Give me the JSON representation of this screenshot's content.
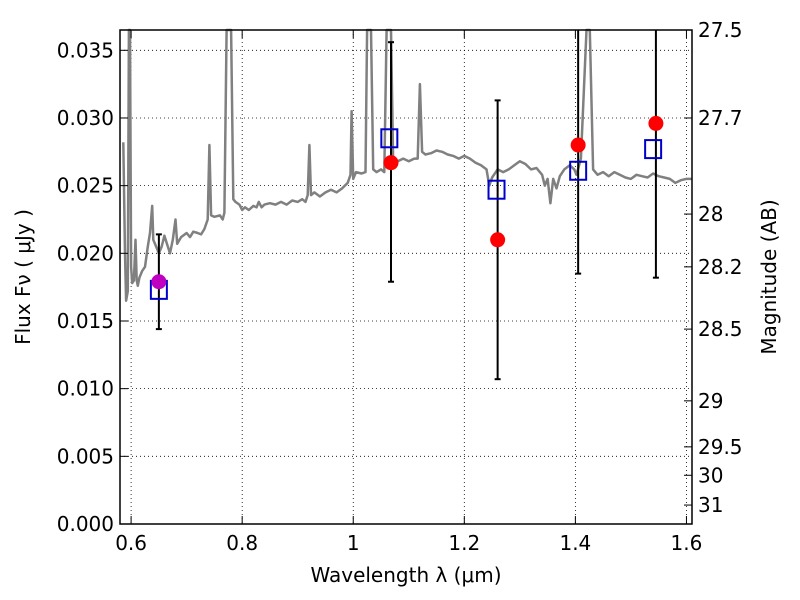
{
  "chart_data": {
    "type": "line",
    "title": "",
    "xlabel": "Wavelength  λ (μm)",
    "ylabel_left": "Flux  Fν  ( μJy )",
    "ylabel_right": "Magnitude (AB)",
    "xlim": [
      0.58,
      1.61
    ],
    "ylim": [
      0.0,
      0.0365
    ],
    "grid": true,
    "grid_style": "dotted",
    "x_ticks": [
      0.6,
      0.8,
      1.0,
      1.2,
      1.4,
      1.6
    ],
    "x_tick_labels": [
      "0.6",
      "0.8",
      "1",
      "1.2",
      "1.4",
      "1.6"
    ],
    "y_ticks": [
      0.0,
      0.005,
      0.01,
      0.015,
      0.02,
      0.025,
      0.03,
      0.035
    ],
    "y_tick_labels": [
      "0.000",
      "0.005",
      "0.010",
      "0.015",
      "0.020",
      "0.025",
      "0.030",
      "0.035"
    ],
    "right_ticks": [
      {
        "label": "27.5",
        "flux": 0.0365
      },
      {
        "label": "27.7",
        "flux": 0.03
      },
      {
        "label": "28",
        "flux": 0.0229
      },
      {
        "label": "28.2",
        "flux": 0.019
      },
      {
        "label": "28.5",
        "flux": 0.0144
      },
      {
        "label": "29",
        "flux": 0.0091
      },
      {
        "label": "29.5",
        "flux": 0.0057
      },
      {
        "label": "30",
        "flux": 0.0036
      },
      {
        "label": "31",
        "flux": 0.0014
      }
    ],
    "series": [
      {
        "type": "line",
        "color": "#808080",
        "points": [
          [
            0.586,
            0.0282
          ],
          [
            0.589,
            0.02
          ],
          [
            0.591,
            0.0165
          ],
          [
            0.594,
            0.0172
          ],
          [
            0.596,
            0.0365
          ],
          [
            0.598,
            0.0365
          ],
          [
            0.6,
            0.019
          ],
          [
            0.602,
            0.0178
          ],
          [
            0.605,
            0.018
          ],
          [
            0.608,
            0.021
          ],
          [
            0.61,
            0.018
          ],
          [
            0.612,
            0.0176
          ],
          [
            0.615,
            0.0182
          ],
          [
            0.62,
            0.0187
          ],
          [
            0.625,
            0.019
          ],
          [
            0.63,
            0.0205
          ],
          [
            0.634,
            0.0215
          ],
          [
            0.638,
            0.0235
          ],
          [
            0.64,
            0.021
          ],
          [
            0.645,
            0.0205
          ],
          [
            0.65,
            0.02
          ],
          [
            0.655,
            0.0205
          ],
          [
            0.66,
            0.0213
          ],
          [
            0.666,
            0.0205
          ],
          [
            0.67,
            0.02
          ],
          [
            0.675,
            0.021
          ],
          [
            0.68,
            0.0225
          ],
          [
            0.683,
            0.0207
          ],
          [
            0.69,
            0.0212
          ],
          [
            0.7,
            0.0215
          ],
          [
            0.706,
            0.0212
          ],
          [
            0.712,
            0.0216
          ],
          [
            0.72,
            0.0215
          ],
          [
            0.726,
            0.0214
          ],
          [
            0.732,
            0.0218
          ],
          [
            0.738,
            0.0225
          ],
          [
            0.741,
            0.028
          ],
          [
            0.744,
            0.0228
          ],
          [
            0.75,
            0.0227
          ],
          [
            0.76,
            0.0228
          ],
          [
            0.765,
            0.0225
          ],
          [
            0.768,
            0.023
          ],
          [
            0.772,
            0.0365
          ],
          [
            0.78,
            0.0365
          ],
          [
            0.784,
            0.024
          ],
          [
            0.788,
            0.0238
          ],
          [
            0.795,
            0.0236
          ],
          [
            0.8,
            0.0232
          ],
          [
            0.805,
            0.0234
          ],
          [
            0.812,
            0.0232
          ],
          [
            0.82,
            0.0235
          ],
          [
            0.826,
            0.0234
          ],
          [
            0.83,
            0.0238
          ],
          [
            0.835,
            0.0234
          ],
          [
            0.84,
            0.0236
          ],
          [
            0.85,
            0.0237
          ],
          [
            0.86,
            0.0236
          ],
          [
            0.87,
            0.0238
          ],
          [
            0.88,
            0.0236
          ],
          [
            0.89,
            0.0239
          ],
          [
            0.9,
            0.0238
          ],
          [
            0.908,
            0.024
          ],
          [
            0.914,
            0.0238
          ],
          [
            0.918,
            0.0243
          ],
          [
            0.921,
            0.028
          ],
          [
            0.924,
            0.0243
          ],
          [
            0.93,
            0.0245
          ],
          [
            0.94,
            0.0242
          ],
          [
            0.95,
            0.0245
          ],
          [
            0.96,
            0.0247
          ],
          [
            0.97,
            0.0245
          ],
          [
            0.98,
            0.0248
          ],
          [
            0.99,
            0.0252
          ],
          [
            0.995,
            0.0258
          ],
          [
            0.997,
            0.0305
          ],
          [
            1.0,
            0.0255
          ],
          [
            1.005,
            0.026
          ],
          [
            1.015,
            0.0259
          ],
          [
            1.022,
            0.026
          ],
          [
            1.025,
            0.0365
          ],
          [
            1.032,
            0.0365
          ],
          [
            1.036,
            0.0262
          ],
          [
            1.042,
            0.026
          ],
          [
            1.05,
            0.0262
          ],
          [
            1.056,
            0.026
          ],
          [
            1.06,
            0.0365
          ],
          [
            1.068,
            0.0365
          ],
          [
            1.072,
            0.0265
          ],
          [
            1.08,
            0.0268
          ],
          [
            1.09,
            0.027
          ],
          [
            1.1,
            0.0268
          ],
          [
            1.11,
            0.027
          ],
          [
            1.116,
            0.027
          ],
          [
            1.12,
            0.0325
          ],
          [
            1.124,
            0.0275
          ],
          [
            1.13,
            0.0273
          ],
          [
            1.14,
            0.0274
          ],
          [
            1.15,
            0.0276
          ],
          [
            1.16,
            0.0275
          ],
          [
            1.17,
            0.0273
          ],
          [
            1.18,
            0.0272
          ],
          [
            1.19,
            0.027
          ],
          [
            1.2,
            0.0272
          ],
          [
            1.21,
            0.027
          ],
          [
            1.22,
            0.0267
          ],
          [
            1.23,
            0.0265
          ],
          [
            1.24,
            0.0262
          ],
          [
            1.245,
            0.025
          ],
          [
            1.25,
            0.0256
          ],
          [
            1.26,
            0.0262
          ],
          [
            1.27,
            0.026
          ],
          [
            1.28,
            0.0262
          ],
          [
            1.29,
            0.0265
          ],
          [
            1.3,
            0.0268
          ],
          [
            1.31,
            0.0266
          ],
          [
            1.32,
            0.0262
          ],
          [
            1.33,
            0.0263
          ],
          [
            1.34,
            0.0258
          ],
          [
            1.345,
            0.025
          ],
          [
            1.35,
            0.0255
          ],
          [
            1.355,
            0.0237
          ],
          [
            1.36,
            0.0255
          ],
          [
            1.366,
            0.0248
          ],
          [
            1.372,
            0.0257
          ],
          [
            1.38,
            0.0262
          ],
          [
            1.39,
            0.0265
          ],
          [
            1.398,
            0.0262
          ],
          [
            1.402,
            0.0258
          ],
          [
            1.41,
            0.027
          ],
          [
            1.42,
            0.0365
          ],
          [
            1.426,
            0.0365
          ],
          [
            1.432,
            0.0262
          ],
          [
            1.44,
            0.0258
          ],
          [
            1.45,
            0.026
          ],
          [
            1.46,
            0.0257
          ],
          [
            1.47,
            0.026
          ],
          [
            1.48,
            0.0258
          ],
          [
            1.49,
            0.0256
          ],
          [
            1.5,
            0.0255
          ],
          [
            1.51,
            0.0258
          ],
          [
            1.52,
            0.0257
          ],
          [
            1.53,
            0.0256
          ],
          [
            1.54,
            0.0259
          ],
          [
            1.55,
            0.0257
          ],
          [
            1.56,
            0.0256
          ],
          [
            1.57,
            0.0255
          ],
          [
            1.58,
            0.0252
          ],
          [
            1.59,
            0.0254
          ],
          [
            1.6,
            0.0255
          ],
          [
            1.61,
            0.0255
          ]
        ]
      },
      {
        "type": "scatter",
        "marker": "open-square",
        "color": "#0000cc",
        "points": [
          [
            0.65,
            0.0173
          ],
          [
            1.065,
            0.0285
          ],
          [
            1.258,
            0.0247
          ],
          [
            1.405,
            0.0261
          ],
          [
            1.54,
            0.0277
          ]
        ]
      },
      {
        "type": "scatter",
        "marker": "filled-circle",
        "color": "#ff0000",
        "points": [
          [
            0.65,
            0.0179
          ],
          [
            1.068,
            0.0267
          ],
          [
            1.26,
            0.021
          ],
          [
            1.405,
            0.028
          ],
          [
            1.545,
            0.0296
          ]
        ],
        "error_low": [
          0.0144,
          0.0179,
          0.0107,
          0.0185,
          0.0182
        ],
        "error_high": [
          0.0214,
          0.0356,
          0.0313,
          0.0365,
          0.0365
        ]
      }
    ],
    "colors": {
      "spectrum": "#808080",
      "squares": "#0000cc",
      "circles": "#ff0000",
      "errorbars": "#000000"
    }
  }
}
